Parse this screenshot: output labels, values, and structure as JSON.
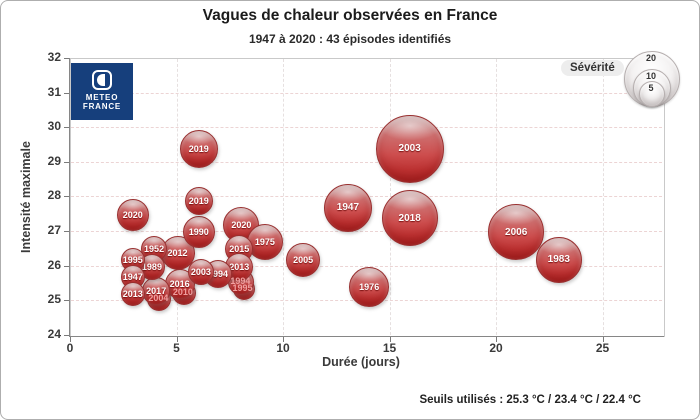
{
  "header": {
    "title": "Vagues de chaleur observées en France",
    "subtitle": "1947 à 2020 : 43 épisodes identifiés"
  },
  "footer": {
    "thresholds": "Seuils utilisés : 25.3 °C / 23.4 °C / 22.4 °C"
  },
  "logo": {
    "text_line1": "METEO",
    "text_line2": "FRANCE",
    "bg_color": "#163f7c"
  },
  "legend": {
    "title": "Sévérité",
    "items": [
      {
        "value": "20",
        "r": 27
      },
      {
        "value": "10",
        "r": 18
      },
      {
        "value": "5",
        "r": 12
      }
    ]
  },
  "colors": {
    "bubble_main": "#c94444",
    "bubble_dark": "#a82424",
    "grid_horizontal": "#ecd4d4",
    "grid_vertical": "#e6e0e0",
    "axis": "#868686",
    "text": "#3a3a3a"
  },
  "chart_data": {
    "type": "scatter",
    "title": "Vagues de chaleur observées en France",
    "subtitle": "1947 à 2020 : 43 épisodes identifiés",
    "xlabel": "Durée (jours)",
    "ylabel": "Intensité maximale",
    "xlim": [
      0,
      27.8
    ],
    "ylim": [
      24,
      32
    ],
    "x_ticks": [
      0,
      5,
      10,
      15,
      20,
      25
    ],
    "y_ticks": [
      24,
      25,
      26,
      27,
      28,
      29,
      30,
      31,
      32
    ],
    "grid": true,
    "size_legend": {
      "title": "Sévérité",
      "values": [
        20,
        10,
        5
      ],
      "note": "bubble area proportional to severity"
    },
    "points": [
      {
        "label": "1995",
        "x": 8.1,
        "y": 25.35,
        "r": 10,
        "faint": true
      },
      {
        "label": "1994",
        "x": 8.0,
        "y": 25.55,
        "r": 12,
        "faint": true
      },
      {
        "label": "2004",
        "x": 4.15,
        "y": 25.05,
        "r": 11,
        "faint": true
      },
      {
        "label": "2010",
        "x": 5.3,
        "y": 25.25,
        "r": 11,
        "faint": true
      },
      {
        "label": "2003",
        "x": 15.9,
        "y": 29.4,
        "r": 33
      },
      {
        "label": "2018",
        "x": 15.9,
        "y": 27.4,
        "r": 27
      },
      {
        "label": "2006",
        "x": 20.9,
        "y": 27.0,
        "r": 27
      },
      {
        "label": "1947",
        "x": 13.0,
        "y": 27.7,
        "r": 23
      },
      {
        "label": "1983",
        "x": 22.9,
        "y": 26.2,
        "r": 22
      },
      {
        "label": "1976",
        "x": 14.0,
        "y": 25.4,
        "r": 19
      },
      {
        "label": "2019",
        "x": 6.0,
        "y": 29.4,
        "r": 18
      },
      {
        "label": "2020",
        "x": 8.0,
        "y": 27.2,
        "r": 17
      },
      {
        "label": "1975",
        "x": 9.1,
        "y": 26.7,
        "r": 17
      },
      {
        "label": "2012",
        "x": 5.0,
        "y": 26.4,
        "r": 16
      },
      {
        "label": "2005",
        "x": 10.9,
        "y": 26.2,
        "r": 16
      },
      {
        "label": "2020",
        "x": 2.9,
        "y": 27.5,
        "r": 15
      },
      {
        "label": "1990",
        "x": 6.0,
        "y": 27.0,
        "r": 15
      },
      {
        "label": "2016",
        "x": 5.1,
        "y": 25.5,
        "r": 14
      },
      {
        "label": "2019",
        "x": 6.0,
        "y": 27.9,
        "r": 13
      },
      {
        "label": "2015",
        "x": 7.9,
        "y": 26.5,
        "r": 13
      },
      {
        "label": "2013",
        "x": 7.9,
        "y": 26.0,
        "r": 13
      },
      {
        "label": "1994",
        "x": 6.9,
        "y": 25.8,
        "r": 13
      },
      {
        "label": "2017",
        "x": 4.0,
        "y": 25.3,
        "r": 13
      },
      {
        "label": "1952",
        "x": 3.9,
        "y": 26.5,
        "r": 12
      },
      {
        "label": "1989",
        "x": 3.8,
        "y": 26.0,
        "r": 12
      },
      {
        "label": "2003",
        "x": 6.1,
        "y": 25.85,
        "r": 12
      },
      {
        "label": "1995",
        "x": 2.9,
        "y": 26.2,
        "r": 11
      },
      {
        "label": "1947",
        "x": 2.9,
        "y": 25.7,
        "r": 11
      },
      {
        "label": "2013",
        "x": 2.9,
        "y": 25.2,
        "r": 11
      }
    ]
  }
}
